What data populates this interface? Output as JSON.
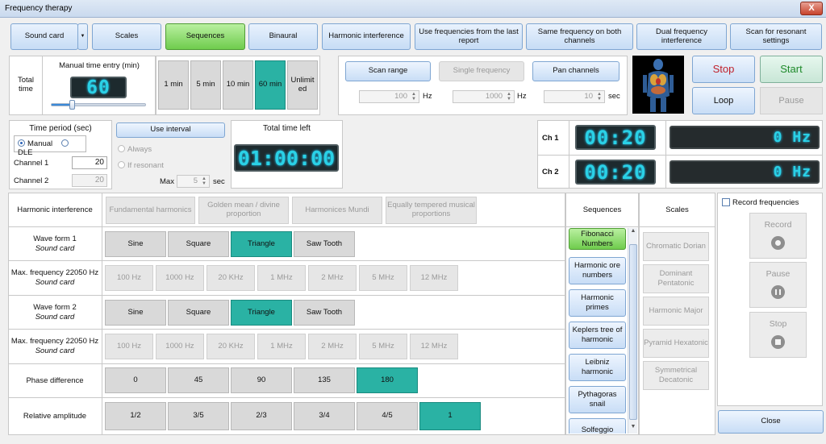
{
  "window": {
    "title": "Frequency therapy",
    "close": "X"
  },
  "toolbar": {
    "sound_card": "Sound card",
    "dropdown": "▼",
    "scales": "Scales",
    "sequences": "Sequences",
    "binaural": "Binaural",
    "harmonic": "Harmonic interference",
    "use_last": "Use frequencies from the last report",
    "same_freq": "Same frequency on both channels",
    "dual": "Dual frequency interference",
    "scan_res": "Scan for resonant settings"
  },
  "total_time": {
    "label": "Total time",
    "manual_entry": "Manual time entry (min)",
    "lcd": "60",
    "presets": [
      "1 min",
      "5 min",
      "10 min",
      "60 min",
      "Unlimited"
    ],
    "selected": "60 min"
  },
  "scan": {
    "scan_range": "Scan range",
    "single": "Single frequency",
    "pan": "Pan channels",
    "range_value": "100",
    "single_value": "1000",
    "pan_value": "10",
    "hz": "Hz",
    "sec": "sec"
  },
  "controls": {
    "stop": "Stop",
    "start": "Start",
    "loop": "Loop",
    "pause": "Pause"
  },
  "time_period": {
    "title": "Time period (sec)",
    "manual": "Manual",
    "dle": "DLE",
    "ch1_label": "Channel 1",
    "ch1_value": "20",
    "ch2_label": "Channel 2",
    "ch2_value": "20",
    "use_interval": "Use interval",
    "always": "Always",
    "if_resonant": "If resonant",
    "max_label": "Max",
    "max_value": "5",
    "sec": "sec"
  },
  "time_left": {
    "title": "Total time left",
    "lcd": "01:00:00"
  },
  "channels": {
    "ch1_label": "Ch 1",
    "ch1_time": "00:20",
    "ch1_freq": "0 Hz",
    "ch2_label": "Ch 2",
    "ch2_time": "00:20",
    "ch2_freq": "0 Hz"
  },
  "harmonic": {
    "title": "Harmonic interference",
    "modes": [
      "Fundamental harmonics",
      "Golden mean / divine proportion",
      "Harmonices Mundi",
      "Equally tempered musical proportions"
    ],
    "wave1_label": "Wave form 1",
    "wave1_sub": "Sound card",
    "waves": [
      "Sine",
      "Square",
      "Triangle",
      "Saw Tooth"
    ],
    "wave_selected": "Triangle",
    "maxfreq_label": "Max. frequency 22050 Hz",
    "maxfreq_sub": "Sound card",
    "freqs": [
      "100 Hz",
      "1000 Hz",
      "20 KHz",
      "1 MHz",
      "2 MHz",
      "5 MHz",
      "12 MHz"
    ],
    "wave2_label": "Wave form 2",
    "wave2_sub": "Sound card",
    "phase_label": "Phase difference",
    "phases": [
      "0",
      "45",
      "90",
      "135",
      "180"
    ],
    "phase_selected": "180",
    "amp_label": "Relative amplitude",
    "amps": [
      "1/2",
      "3/5",
      "2/3",
      "3/4",
      "4/5",
      "1"
    ],
    "amp_selected": "1"
  },
  "sequences": {
    "title": "Sequences",
    "items": [
      "Fibonacci Numbers",
      "Harmonic ore numbers",
      "Harmonic primes",
      "Keplers tree of harmonic",
      "Leibniz harmonic",
      "Pythagoras snail",
      "Solfeggio"
    ],
    "selected": "Fibonacci Numbers"
  },
  "scales": {
    "title": "Scales",
    "items": [
      "Chromatic Dorian",
      "Dominant Pentatonic",
      "Harmonic Major",
      "Pyramid Hexatonic",
      "Symmetrical Decatonic"
    ]
  },
  "record": {
    "checkbox": "Record frequencies",
    "record": "Record",
    "pause": "Pause",
    "stop": "Stop",
    "close": "Close"
  },
  "colors": {
    "teal": "#2ab2a4",
    "green": "#6fcc4d",
    "stop_red": "#c0202a",
    "start_green": "#1e8a2a",
    "lcd_cyan": "#2ad1e6"
  }
}
